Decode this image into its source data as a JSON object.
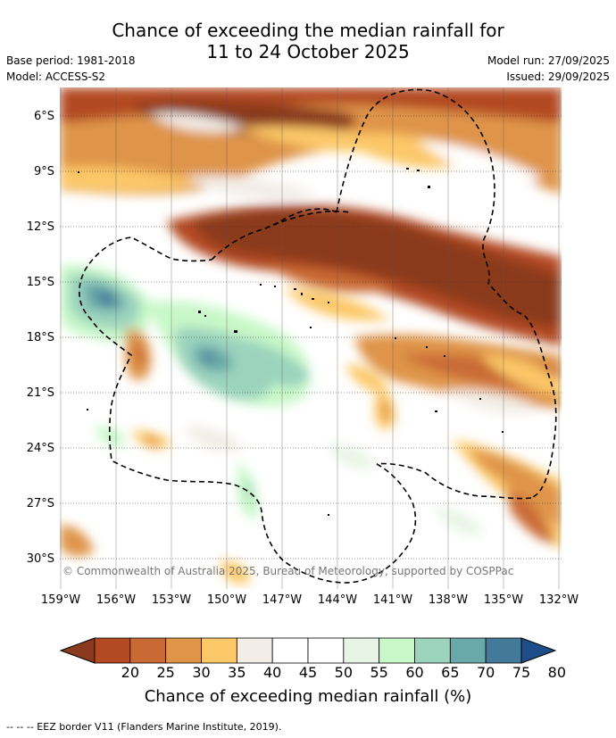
{
  "title_line1": "Chance of exceeding the median rainfall for",
  "title_line2": "11 to 24 October 2025",
  "base_period": "Base period: 1981-2018",
  "model": "Model: ACCESS-S2",
  "model_run": "Model run: 27/09/2025",
  "issued": "Issued: 29/09/2025",
  "lat_labels": [
    "6°S",
    "9°S",
    "12°S",
    "15°S",
    "18°S",
    "21°S",
    "24°S",
    "27°S",
    "30°S"
  ],
  "lon_labels": [
    "159°W",
    "156°W",
    "153°W",
    "150°W",
    "147°W",
    "144°W",
    "141°W",
    "138°W",
    "135°W",
    "132°W"
  ],
  "copyright": "© Commonwealth of Australia 2025, Bureau of Meteorology, supported by COSPPac",
  "colorbar": {
    "title": "Chance of exceeding median rainfall (%)",
    "ticks": [
      "20",
      "25",
      "30",
      "35",
      "40",
      "45",
      "50",
      "55",
      "60",
      "65",
      "70",
      "75",
      "80"
    ],
    "colors": [
      "#8b3a1d",
      "#b34a22",
      "#c96a34",
      "#df9448",
      "#fcc867",
      "#f2ede6",
      "#ffffff",
      "#ffffff",
      "#e8f5e6",
      "#c8f8c8",
      "#9bd3bd",
      "#6aa9a9",
      "#437a9a",
      "#1d4e89"
    ]
  },
  "footnote": "--  --  -- EEZ border V11 (Flanders Marine Institute, 2019)."
}
